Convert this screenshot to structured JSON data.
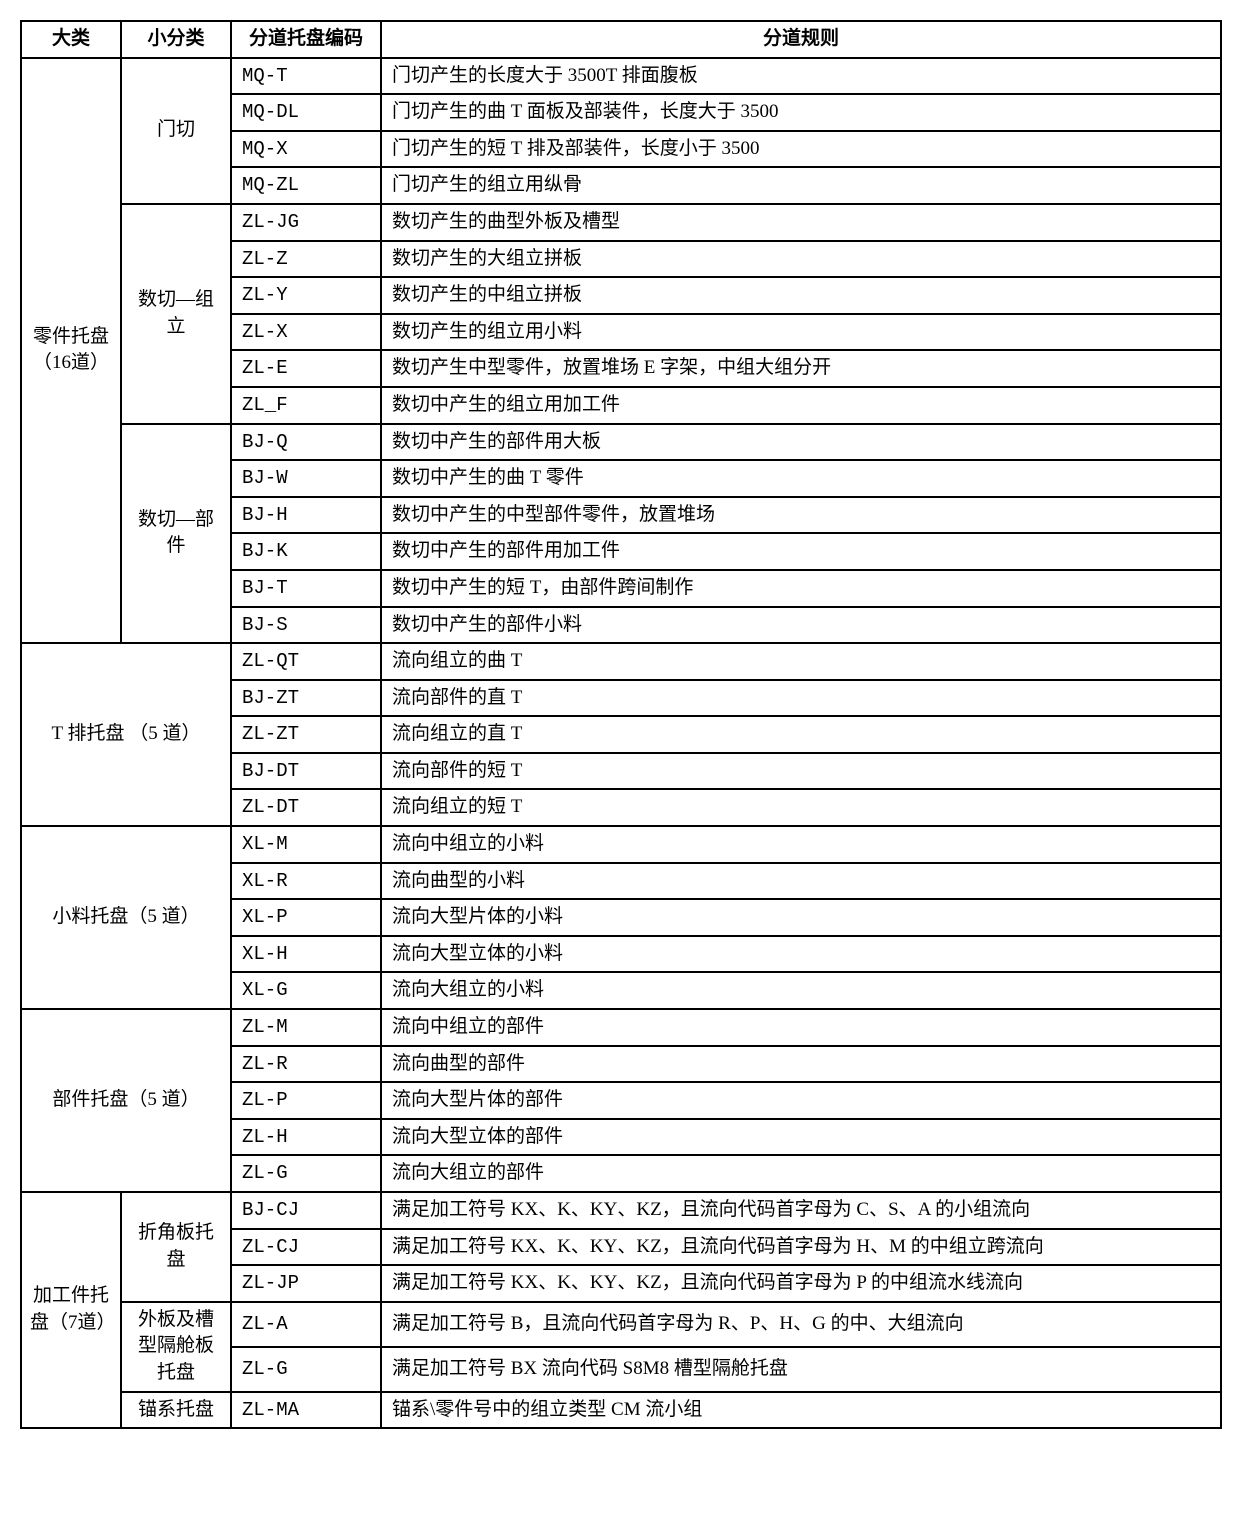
{
  "headers": {
    "h1": "大类",
    "h2": "小分类",
    "h3": "分道托盘编码",
    "h4": "分道规则"
  },
  "groups": [
    {
      "cat1": "零件托盘（16道）",
      "subs": [
        {
          "cat2": "门切",
          "rows": [
            {
              "code": "MQ-T",
              "rule": "门切产生的长度大于 3500T 排面腹板"
            },
            {
              "code": "MQ-DL",
              "rule": "门切产生的曲 T 面板及部装件，长度大于 3500"
            },
            {
              "code": "MQ-X",
              "rule": "门切产生的短 T 排及部装件，长度小于 3500"
            },
            {
              "code": "MQ-ZL",
              "rule": "门切产生的组立用纵骨"
            }
          ]
        },
        {
          "cat2": "数切—组立",
          "rows": [
            {
              "code": "ZL-JG",
              "rule": "数切产生的曲型外板及槽型"
            },
            {
              "code": "ZL-Z",
              "rule": "数切产生的大组立拼板"
            },
            {
              "code": "ZL-Y",
              "rule": "数切产生的中组立拼板"
            },
            {
              "code": "ZL-X",
              "rule": "数切产生的组立用小料"
            },
            {
              "code": "ZL-E",
              "rule": "数切产生中型零件，放置堆场 E 字架，中组大组分开"
            },
            {
              "code": "ZL_F",
              "rule": "数切中产生的组立用加工件"
            }
          ]
        },
        {
          "cat2": "数切—部件",
          "rows": [
            {
              "code": "BJ-Q",
              "rule": "数切中产生的部件用大板"
            },
            {
              "code": "BJ-W",
              "rule": "数切中产生的曲 T 零件"
            },
            {
              "code": "BJ-H",
              "rule": "数切中产生的中型部件零件，放置堆场"
            },
            {
              "code": "BJ-K",
              "rule": "数切中产生的部件用加工件"
            },
            {
              "code": "BJ-T",
              "rule": "数切中产生的短 T，由部件跨间制作"
            },
            {
              "code": "BJ-S",
              "rule": "数切中产生的部件小料"
            }
          ]
        }
      ]
    },
    {
      "cat1_span2": true,
      "cat1": "T 排托盘 （5 道）",
      "subs": [
        {
          "cat2": null,
          "rows": [
            {
              "code": "ZL-QT",
              "rule": "流向组立的曲 T"
            },
            {
              "code": "BJ-ZT",
              "rule": "流向部件的直 T"
            },
            {
              "code": "ZL-ZT",
              "rule": "流向组立的直 T"
            },
            {
              "code": "BJ-DT",
              "rule": "流向部件的短 T"
            },
            {
              "code": "ZL-DT",
              "rule": "流向组立的短 T"
            }
          ]
        }
      ]
    },
    {
      "cat1_span2": true,
      "cat1": "小料托盘（5 道）",
      "subs": [
        {
          "cat2": null,
          "rows": [
            {
              "code": "XL-M",
              "rule": "流向中组立的小料"
            },
            {
              "code": "XL-R",
              "rule": "流向曲型的小料"
            },
            {
              "code": "XL-P",
              "rule": "流向大型片体的小料"
            },
            {
              "code": "XL-H",
              "rule": "流向大型立体的小料"
            },
            {
              "code": "XL-G",
              "rule": "流向大组立的小料"
            }
          ]
        }
      ]
    },
    {
      "cat1_span2": true,
      "cat1": "部件托盘（5 道）",
      "subs": [
        {
          "cat2": null,
          "rows": [
            {
              "code": "ZL-M",
              "rule": "流向中组立的部件"
            },
            {
              "code": "ZL-R",
              "rule": "流向曲型的部件"
            },
            {
              "code": "ZL-P",
              "rule": "流向大型片体的部件"
            },
            {
              "code": "ZL-H",
              "rule": "流向大型立体的部件"
            },
            {
              "code": "ZL-G",
              "rule": "流向大组立的部件"
            }
          ]
        }
      ]
    },
    {
      "cat1": "加工件托盘（7道）",
      "subs": [
        {
          "cat2": "折角板托盘",
          "rows": [
            {
              "code": "BJ-CJ",
              "rule": "满足加工符号 KX、K、KY、KZ，且流向代码首字母为 C、S、A 的小组流向"
            },
            {
              "code": "ZL-CJ",
              "rule": "满足加工符号 KX、K、KY、KZ，且流向代码首字母为 H、M 的中组立跨流向"
            },
            {
              "code": "ZL-JP",
              "rule": "满足加工符号 KX、K、KY、KZ，且流向代码首字母为 P 的中组流水线流向"
            }
          ]
        },
        {
          "cat2": "外板及槽型隔舱板托盘",
          "rows": [
            {
              "code": "ZL-A",
              "rule": "满足加工符号 B，且流向代码首字母为 R、P、H、G 的中、大组流向"
            },
            {
              "code": "ZL-G",
              "rule": "满足加工符号 BX 流向代码 S8M8 槽型隔舱托盘"
            }
          ]
        },
        {
          "cat2": "锚系托盘",
          "rows": [
            {
              "code": "ZL-MA",
              "rule": "锚系\\零件号中的组立类型 CM 流小组"
            }
          ]
        }
      ]
    }
  ]
}
